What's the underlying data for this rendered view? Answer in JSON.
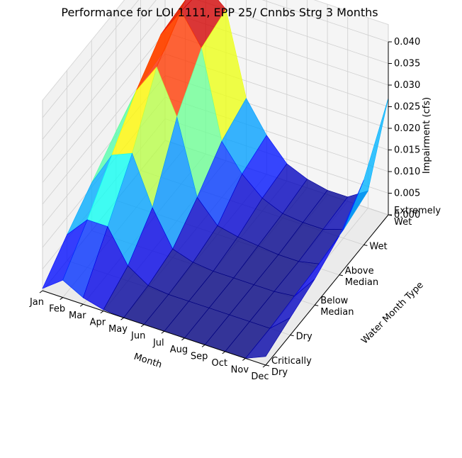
{
  "chart_data": {
    "type": "surface3d",
    "title": "Performance for LOI 1111, EPP 25/ Cnnbs Strg 3 Months",
    "xlabel": "Month",
    "ylabel": "Water Month Type",
    "zlabel": "Impairment (cfs)",
    "categories": [
      "Jan",
      "Feb",
      "Mar",
      "Apr",
      "May",
      "Jun",
      "Jul",
      "Aug",
      "Sep",
      "Oct",
      "Nov",
      "Dec"
    ],
    "y_categories": [
      "Critically Dry",
      "Dry",
      "Below Median",
      "Above Median",
      "Wet",
      "Extremely Wet"
    ],
    "zlim": [
      0,
      0.04
    ],
    "zticks": [
      "0.000",
      "0.005",
      "0.010",
      "0.015",
      "0.020",
      "0.025",
      "0.030",
      "0.035",
      "0.040"
    ],
    "colormap": "jet",
    "grid": true,
    "series": [
      {
        "name": "Critically Dry",
        "values": [
          0.0005,
          0.004,
          0.0015,
          0.0003,
          0.0,
          0.0,
          0.0,
          0.0,
          0.0,
          0.0,
          0.0,
          0.002
        ]
      },
      {
        "name": "Dry",
        "values": [
          0.006,
          0.011,
          0.011,
          0.0035,
          0.0005,
          0.0,
          0.0,
          0.0,
          0.0,
          0.0,
          0.0,
          0.004
        ]
      },
      {
        "name": "Below Median",
        "values": [
          0.011,
          0.019,
          0.021,
          0.01,
          0.002,
          0.0005,
          0.0,
          0.0,
          0.0,
          0.0,
          0.0005,
          0.006
        ]
      },
      {
        "name": "Above Median",
        "values": [
          0.016,
          0.027,
          0.034,
          0.024,
          0.007,
          0.002,
          0.001,
          0.0005,
          0.0,
          0.0,
          0.001,
          0.009
        ]
      },
      {
        "name": "Wet",
        "values": [
          0.02,
          0.033,
          0.04,
          0.033,
          0.013,
          0.007,
          0.003,
          0.001,
          0.0005,
          0.0005,
          0.002,
          0.015
        ]
      },
      {
        "name": "Extremely Wet",
        "values": [
          0.021,
          0.034,
          0.039,
          0.035,
          0.016,
          0.009,
          0.004,
          0.002,
          0.001,
          0.001,
          0.004,
          0.027
        ]
      }
    ]
  }
}
